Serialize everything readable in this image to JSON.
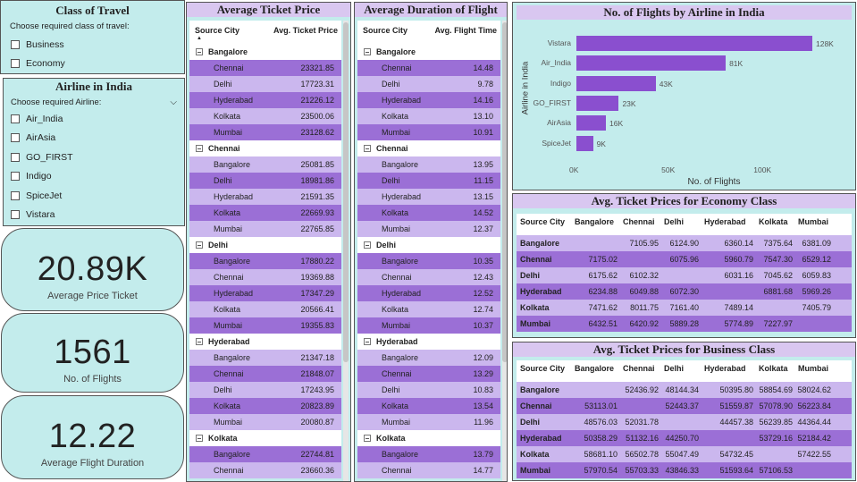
{
  "class_slicer": {
    "title": "Class of Travel",
    "subtitle": "Choose required class of travel:",
    "options": [
      "Business",
      "Economy"
    ]
  },
  "airline_slicer": {
    "title": "Airline in India",
    "subtitle": "Choose required Airline:",
    "options": [
      "Air_India",
      "AirAsia",
      "GO_FIRST",
      "Indigo",
      "SpiceJet",
      "Vistara"
    ]
  },
  "cards": [
    {
      "value": "20.89K",
      "label": "Average Price Ticket"
    },
    {
      "value": "1561",
      "label": "No. of Flights"
    },
    {
      "value": "12.22",
      "label": "Average Flight Duration"
    }
  ],
  "price_matrix": {
    "title": "Average Ticket Price",
    "col1": "Source City",
    "col2": "Avg. Ticket Price",
    "groups": [
      {
        "city": "Bangalore",
        "rows": [
          [
            "Chennai",
            "23321.85"
          ],
          [
            "Delhi",
            "17723.31"
          ],
          [
            "Hyderabad",
            "21226.12"
          ],
          [
            "Kolkata",
            "23500.06"
          ],
          [
            "Mumbai",
            "23128.62"
          ]
        ]
      },
      {
        "city": "Chennai",
        "rows": [
          [
            "Bangalore",
            "25081.85"
          ],
          [
            "Delhi",
            "18981.86"
          ],
          [
            "Hyderabad",
            "21591.35"
          ],
          [
            "Kolkata",
            "22669.93"
          ],
          [
            "Mumbai",
            "22765.85"
          ]
        ]
      },
      {
        "city": "Delhi",
        "rows": [
          [
            "Bangalore",
            "17880.22"
          ],
          [
            "Chennai",
            "19369.88"
          ],
          [
            "Hyderabad",
            "17347.29"
          ],
          [
            "Kolkata",
            "20566.41"
          ],
          [
            "Mumbai",
            "19355.83"
          ]
        ]
      },
      {
        "city": "Hyderabad",
        "rows": [
          [
            "Bangalore",
            "21347.18"
          ],
          [
            "Chennai",
            "21848.07"
          ],
          [
            "Delhi",
            "17243.95"
          ],
          [
            "Kolkata",
            "20823.89"
          ],
          [
            "Mumbai",
            "20080.87"
          ]
        ]
      },
      {
        "city": "Kolkata",
        "rows": [
          [
            "Bangalore",
            "22744.81"
          ],
          [
            "Chennai",
            "23660.36"
          ]
        ]
      }
    ]
  },
  "duration_matrix": {
    "title": "Average Duration of Flight",
    "col1": "Source City",
    "col2": "Avg. Flight Time",
    "groups": [
      {
        "city": "Bangalore",
        "rows": [
          [
            "Chennai",
            "14.48"
          ],
          [
            "Delhi",
            "9.78"
          ],
          [
            "Hyderabad",
            "14.16"
          ],
          [
            "Kolkata",
            "13.10"
          ],
          [
            "Mumbai",
            "10.91"
          ]
        ]
      },
      {
        "city": "Chennai",
        "rows": [
          [
            "Bangalore",
            "13.95"
          ],
          [
            "Delhi",
            "11.15"
          ],
          [
            "Hyderabad",
            "13.15"
          ],
          [
            "Kolkata",
            "14.52"
          ],
          [
            "Mumbai",
            "12.37"
          ]
        ]
      },
      {
        "city": "Delhi",
        "rows": [
          [
            "Bangalore",
            "10.35"
          ],
          [
            "Chennai",
            "12.43"
          ],
          [
            "Hyderabad",
            "12.52"
          ],
          [
            "Kolkata",
            "12.74"
          ],
          [
            "Mumbai",
            "10.37"
          ]
        ]
      },
      {
        "city": "Hyderabad",
        "rows": [
          [
            "Bangalore",
            "12.09"
          ],
          [
            "Chennai",
            "13.29"
          ],
          [
            "Delhi",
            "10.83"
          ],
          [
            "Kolkata",
            "13.54"
          ],
          [
            "Mumbai",
            "11.96"
          ]
        ]
      },
      {
        "city": "Kolkata",
        "rows": [
          [
            "Bangalore",
            "13.79"
          ],
          [
            "Chennai",
            "14.77"
          ]
        ]
      }
    ]
  },
  "chart_data": {
    "type": "bar",
    "title": "No. of Flights by Airline in India",
    "categories": [
      "Vistara",
      "Air_India",
      "Indigo",
      "GO_FIRST",
      "AirAsia",
      "SpiceJet"
    ],
    "values": [
      128000,
      81000,
      43000,
      23000,
      16000,
      9000
    ],
    "data_labels": [
      "128K",
      "81K",
      "43K",
      "23K",
      "16K",
      "9K"
    ],
    "xlabel": "No. of Flights",
    "ylabel": "Airline in India",
    "xlim": [
      0,
      128000
    ],
    "x_ticks": [
      "0K",
      "50K",
      "100K"
    ],
    "color": "#8a4fcf"
  },
  "economy_table": {
    "title": "Avg. Ticket Prices for Economy Class",
    "headers": [
      "Source City",
      "Bangalore",
      "Chennai",
      "Delhi",
      "Hyderabad",
      "Kolkata",
      "Mumbai"
    ],
    "rows": [
      [
        "Bangalore",
        "",
        "7105.95",
        "6124.90",
        "6360.14",
        "7375.64",
        "6381.09"
      ],
      [
        "Chennai",
        "7175.02",
        "",
        "6075.96",
        "5960.79",
        "7547.30",
        "6529.12"
      ],
      [
        "Delhi",
        "6175.62",
        "6102.32",
        "",
        "6031.16",
        "7045.62",
        "6059.83"
      ],
      [
        "Hyderabad",
        "6234.88",
        "6049.88",
        "6072.30",
        "",
        "6881.68",
        "5969.26"
      ],
      [
        "Kolkata",
        "7471.62",
        "8011.75",
        "7161.40",
        "7489.14",
        "",
        "7405.79"
      ],
      [
        "Mumbai",
        "6432.51",
        "6420.92",
        "5889.28",
        "5774.89",
        "7227.97",
        ""
      ]
    ]
  },
  "business_table": {
    "title": "Avg. Ticket Prices for Business Class",
    "headers": [
      "Source City",
      "Bangalore",
      "Chennai",
      "Delhi",
      "Hyderabad",
      "Kolkata",
      "Mumbai"
    ],
    "rows": [
      [
        "Bangalore",
        "",
        "52436.92",
        "48144.34",
        "50395.80",
        "58854.69",
        "58024.62"
      ],
      [
        "Chennai",
        "53113.01",
        "",
        "52443.37",
        "51559.87",
        "57078.90",
        "56223.84"
      ],
      [
        "Delhi",
        "48576.03",
        "52031.78",
        "",
        "44457.38",
        "56239.85",
        "44364.44"
      ],
      [
        "Hyderabad",
        "50358.29",
        "51132.16",
        "44250.70",
        "",
        "53729.16",
        "52184.42"
      ],
      [
        "Kolkata",
        "58681.10",
        "56502.78",
        "55047.49",
        "54732.45",
        "",
        "57422.55"
      ],
      [
        "Mumbai",
        "57970.54",
        "55703.33",
        "43846.33",
        "51593.64",
        "57106.53",
        ""
      ]
    ]
  }
}
